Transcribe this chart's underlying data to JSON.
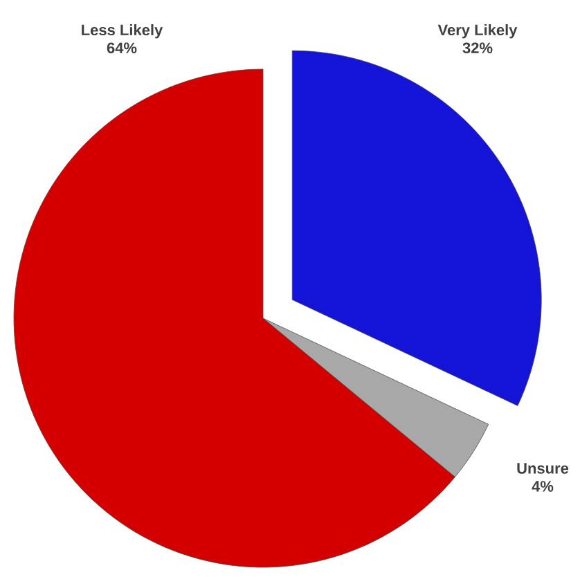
{
  "chart_data": {
    "type": "pie",
    "categories": [
      "Very Likely",
      "Unsure",
      "Less Likely"
    ],
    "values": [
      32,
      4,
      64
    ],
    "value_labels": [
      "32%",
      "4%",
      "64%"
    ],
    "colors": [
      "#1414d8",
      "#a8a8a8",
      "#d40000"
    ]
  }
}
